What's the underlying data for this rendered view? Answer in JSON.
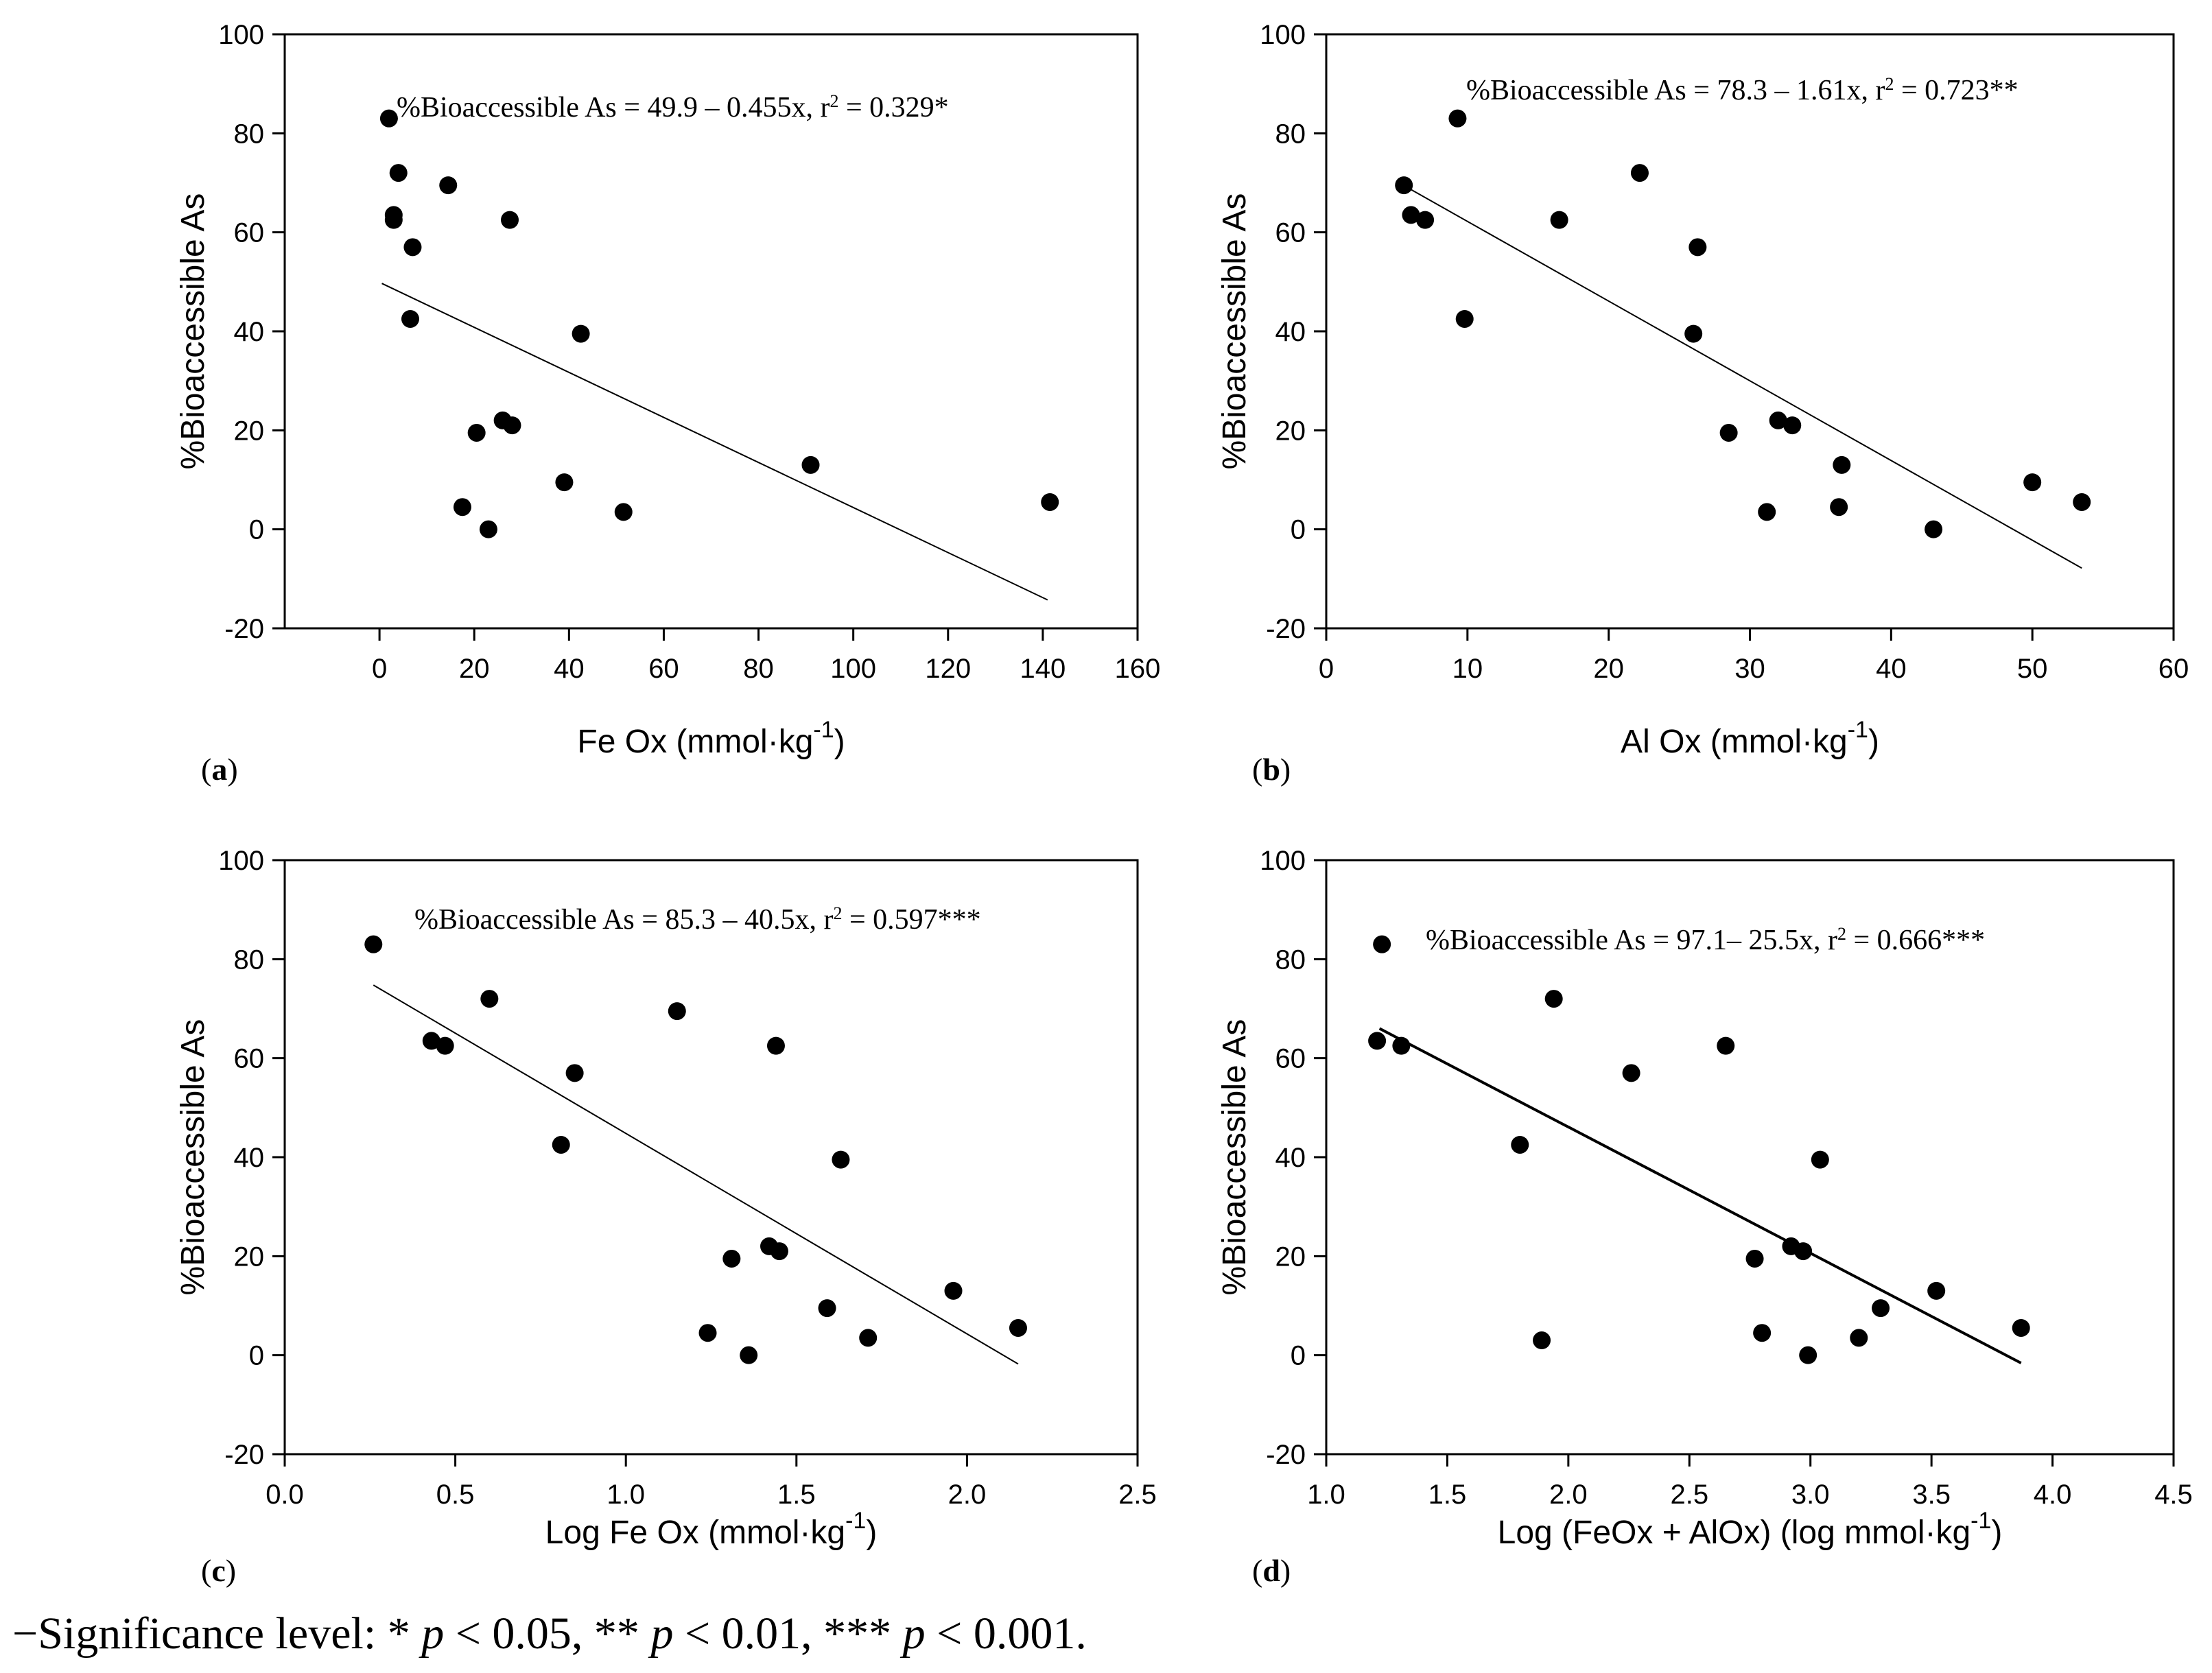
{
  "chart_data": [
    {
      "type": "scatter",
      "panel": "(a)",
      "panel_letter": "a",
      "xlabel": "Fe Ox (mmol·kg",
      "xlabel_sup": "-1",
      "xlabel_end": ")",
      "ylabel": "%Bioaccessible As",
      "xlim": [
        -20,
        160
      ],
      "ylim": [
        -20,
        100
      ],
      "xticks": [
        0,
        20,
        40,
        60,
        80,
        100,
        120,
        140,
        160
      ],
      "xtick_labels": [
        "0",
        "20",
        "40",
        "60",
        "80",
        "100",
        "120",
        "140",
        "160"
      ],
      "yticks": [
        -20,
        0,
        20,
        40,
        60,
        80,
        100
      ],
      "ytick_labels": [
        "-20",
        "0",
        "20",
        "40",
        "60",
        "80",
        "100"
      ],
      "equation": "%Bioaccessible As = 49.9 – 0.455x, r",
      "equation_sup": "2",
      "equation_end": " = 0.329*",
      "fit": {
        "intercept": 49.9,
        "slope": -0.455,
        "x": [
          0.5,
          141
        ]
      },
      "points": {
        "x": [
          2,
          3,
          3,
          4,
          7,
          6.5,
          14.5,
          27.5,
          42.5,
          26,
          28,
          20.5,
          17.5,
          23,
          39,
          51.5,
          91,
          141.5
        ],
        "y": [
          83,
          63.5,
          62.5,
          72,
          57,
          42.5,
          69.5,
          62.5,
          39.5,
          22,
          21,
          19.5,
          4.5,
          0,
          9.5,
          3.5,
          13,
          5.5
        ]
      }
    },
    {
      "type": "scatter",
      "panel": "(b)",
      "panel_letter": "b",
      "xlabel": "Al Ox (mmol·kg",
      "xlabel_sup": "-1",
      "xlabel_end": ")",
      "ylabel": "%Bioaccessible As",
      "xlim": [
        0,
        60
      ],
      "ylim": [
        -20,
        100
      ],
      "xticks": [
        0,
        10,
        20,
        30,
        40,
        50,
        60
      ],
      "xtick_labels": [
        "0",
        "10",
        "20",
        "30",
        "40",
        "50",
        "60"
      ],
      "yticks": [
        -20,
        0,
        20,
        40,
        60,
        80,
        100
      ],
      "ytick_labels": [
        "-20",
        "0",
        "20",
        "40",
        "60",
        "80",
        "100"
      ],
      "equation": "%Bioaccessible As = 78.3 – 1.61x, r",
      "equation_sup": "2",
      "equation_end": " = 0.723**",
      "fit": {
        "intercept": 78.3,
        "slope": -1.61,
        "x": [
          5.5,
          53.5
        ]
      },
      "points": {
        "x": [
          9.3,
          5.5,
          6,
          7,
          9.8,
          16.5,
          22.2,
          26.3,
          26,
          28.5,
          32,
          33,
          36.5,
          31.2,
          36.3,
          43,
          50,
          53.5
        ],
        "y": [
          83,
          69.5,
          63.5,
          62.5,
          42.5,
          62.5,
          72,
          57,
          39.5,
          19.5,
          22,
          21,
          13,
          3.5,
          4.5,
          0,
          9.5,
          5.5
        ]
      }
    },
    {
      "type": "scatter",
      "panel": "(c)",
      "panel_letter": "c",
      "xlabel": "Log Fe Ox (mmol·kg",
      "xlabel_sup": "-1",
      "xlabel_end": ")",
      "ylabel": "%Bioaccessible As",
      "xlim": [
        0,
        2.5
      ],
      "ylim": [
        -20,
        100
      ],
      "xticks": [
        0,
        0.5,
        1.0,
        1.5,
        2.0,
        2.5
      ],
      "xtick_labels": [
        "0.0",
        "0.5",
        "1.0",
        "1.5",
        "2.0",
        "2.5"
      ],
      "yticks": [
        -20,
        0,
        20,
        40,
        60,
        80,
        100
      ],
      "ytick_labels": [
        "-20",
        "0",
        "20",
        "40",
        "60",
        "80",
        "100"
      ],
      "equation": "%Bioaccessible As = 85.3 – 40.5x, r",
      "equation_sup": "2",
      "equation_end": " = 0.597***",
      "fit": {
        "intercept": 85.3,
        "slope": -40.5,
        "x": [
          0.26,
          2.15
        ]
      },
      "points": {
        "x": [
          0.26,
          0.43,
          0.47,
          0.6,
          0.85,
          0.81,
          1.15,
          1.44,
          1.63,
          1.31,
          1.42,
          1.45,
          1.24,
          1.36,
          1.59,
          1.71,
          1.96,
          2.15
        ],
        "y": [
          83,
          63.5,
          62.5,
          72,
          57,
          42.5,
          69.5,
          62.5,
          39.5,
          19.5,
          22,
          21,
          4.5,
          0,
          9.5,
          3.5,
          13,
          5.5
        ]
      }
    },
    {
      "type": "scatter",
      "panel": "(d)",
      "panel_letter": "d",
      "xlabel": "Log (FeOx + AlOx) (log mmol·kg",
      "xlabel_sup": "-1",
      "xlabel_end": ")",
      "ylabel": "%Bioaccessible As",
      "xlim": [
        1.0,
        4.5
      ],
      "ylim": [
        -20,
        100
      ],
      "xticks": [
        1.0,
        1.5,
        2.0,
        2.5,
        3.0,
        3.5,
        4.0,
        4.5
      ],
      "xtick_labels": [
        "1.0",
        "1.5",
        "2.0",
        "2.5",
        "3.0",
        "3.5",
        "4.0",
        "4.5"
      ],
      "yticks": [
        -20,
        0,
        20,
        40,
        60,
        80,
        100
      ],
      "ytick_labels": [
        "-20",
        "0",
        "20",
        "40",
        "60",
        "80",
        "100"
      ],
      "equation": "%Bioaccessible As = 97.1– 25.5x, r",
      "equation_sup": "2",
      "equation_end": " = 0.666***",
      "fit": {
        "intercept": 97.1,
        "slope": -25.5,
        "x": [
          1.22,
          3.87
        ]
      },
      "points": {
        "x": [
          1.23,
          1.21,
          1.31,
          1.94,
          2.26,
          2.65,
          1.8,
          3.04,
          2.77,
          2.92,
          2.97,
          1.89,
          2.8,
          2.99,
          3.2,
          3.29,
          3.52,
          3.87
        ],
        "y": [
          83,
          63.5,
          62.5,
          72,
          57,
          62.5,
          42.5,
          39.5,
          19.5,
          22,
          21,
          3,
          4.5,
          0,
          3.5,
          9.5,
          13,
          5.5
        ]
      }
    }
  ],
  "footnote": {
    "prefix": "−Significance level: * ",
    "p": "p",
    "a": " < 0.05, ** ",
    "b": " < 0.01, *** ",
    "c": " < 0.001."
  }
}
